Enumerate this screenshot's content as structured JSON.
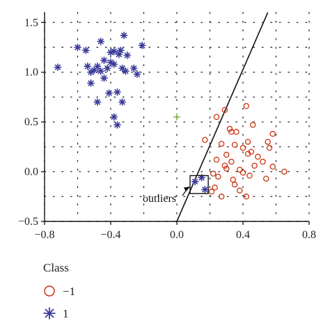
{
  "chart_data": {
    "type": "scatter",
    "title": "",
    "xlabel": "",
    "ylabel": "",
    "xlim": [
      -0.8,
      0.8
    ],
    "ylim": [
      -0.5,
      1.6
    ],
    "x_ticks": [
      -0.8,
      -0.4,
      0.0,
      0.4,
      0.8
    ],
    "x_tick_labels": [
      "−0.8",
      "−0.4",
      "0.0",
      "0.4",
      "0.8"
    ],
    "y_ticks": [
      -0.5,
      0.0,
      0.5,
      1.0,
      1.5
    ],
    "y_tick_labels": [
      "−0.5",
      "0.0",
      "0.5",
      "1.0",
      "1.5"
    ],
    "grid": "dotted",
    "series": [
      {
        "name": "1",
        "marker": "asterisk",
        "color": "#3b3b9a",
        "points": [
          [
            -0.72,
            1.05
          ],
          [
            -0.6,
            1.25
          ],
          [
            -0.55,
            1.22
          ],
          [
            -0.46,
            1.31
          ],
          [
            -0.4,
            1.2
          ],
          [
            -0.34,
            1.22
          ],
          [
            -0.32,
            1.37
          ],
          [
            -0.3,
            1.17
          ],
          [
            -0.21,
            1.27
          ],
          [
            -0.38,
            1.21
          ],
          [
            -0.35,
            1.18
          ],
          [
            -0.5,
            1.02
          ],
          [
            -0.48,
            1.06
          ],
          [
            -0.46,
            1.01
          ],
          [
            -0.44,
            1.12
          ],
          [
            -0.42,
            1.04
          ],
          [
            -0.4,
            1.1
          ],
          [
            -0.38,
            1.08
          ],
          [
            -0.33,
            1.04
          ],
          [
            -0.31,
            1.01
          ],
          [
            -0.26,
            1.04
          ],
          [
            -0.24,
            0.98
          ],
          [
            -0.54,
            1.06
          ],
          [
            -0.52,
            0.89
          ],
          [
            -0.44,
            0.94
          ],
          [
            -0.41,
            0.79
          ],
          [
            -0.36,
            0.8
          ],
          [
            -0.48,
            0.7
          ],
          [
            -0.38,
            0.55
          ],
          [
            -0.36,
            0.47
          ],
          [
            -0.33,
            0.7
          ],
          [
            -0.52,
            1.0
          ],
          [
            0.11,
            -0.1
          ],
          [
            0.17,
            -0.18
          ],
          [
            0.15,
            -0.06
          ]
        ]
      },
      {
        "name": "−1",
        "marker": "circle",
        "color": "#cc3311",
        "points": [
          [
            0.17,
            0.32
          ],
          [
            0.24,
            0.55
          ],
          [
            0.29,
            0.62
          ],
          [
            0.32,
            0.43
          ],
          [
            0.33,
            0.4
          ],
          [
            0.36,
            0.4
          ],
          [
            0.42,
            0.66
          ],
          [
            0.46,
            0.47
          ],
          [
            0.55,
            0.3
          ],
          [
            0.58,
            0.38
          ],
          [
            0.27,
            0.28
          ],
          [
            0.3,
            0.17
          ],
          [
            0.35,
            0.27
          ],
          [
            0.4,
            0.24
          ],
          [
            0.43,
            0.3
          ],
          [
            0.45,
            0.2
          ],
          [
            0.49,
            0.15
          ],
          [
            0.56,
            0.24
          ],
          [
            0.24,
            0.12
          ],
          [
            0.29,
            0.06
          ],
          [
            0.33,
            0.1
          ],
          [
            0.38,
            0.02
          ],
          [
            0.43,
            0.18
          ],
          [
            0.47,
            0.06
          ],
          [
            0.52,
            0.1
          ],
          [
            0.58,
            0.05
          ],
          [
            0.65,
            0.0
          ],
          [
            0.22,
            -0.02
          ],
          [
            0.25,
            -0.05
          ],
          [
            0.3,
            0.03
          ],
          [
            0.34,
            -0.08
          ],
          [
            0.4,
            -0.01
          ],
          [
            0.44,
            -0.04
          ],
          [
            0.54,
            -0.07
          ],
          [
            0.21,
            -0.2
          ],
          [
            0.23,
            -0.16
          ],
          [
            0.27,
            -0.25
          ],
          [
            0.35,
            -0.13
          ],
          [
            0.38,
            -0.19
          ],
          [
            0.42,
            -0.25
          ]
        ]
      }
    ],
    "decision_line": {
      "x": [
        0.0,
        0.55
      ],
      "y": [
        -0.5,
        1.6
      ]
    },
    "center_marker": {
      "x": 0.0,
      "y": 0.55,
      "marker": "plus",
      "color": "#66aa33"
    },
    "outlier_box": {
      "x": [
        0.08,
        0.19
      ],
      "y": [
        -0.22,
        -0.04
      ]
    },
    "annotation": {
      "text": "outliers",
      "x": 0.08,
      "y": -0.11
    },
    "legend": {
      "title": "Class",
      "position": "bottom-left",
      "entries": [
        {
          "label": "−1",
          "marker": "circle",
          "color": "#cc3311"
        },
        {
          "label": "1",
          "marker": "asterisk",
          "color": "#3b3b9a"
        }
      ]
    }
  }
}
